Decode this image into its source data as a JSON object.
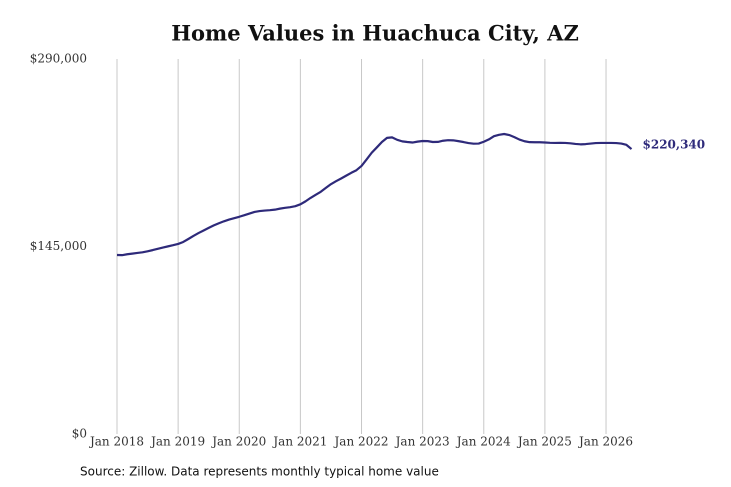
{
  "chart_data": {
    "type": "line",
    "title": "Home Values in Huachuca City, AZ",
    "source": "Source: Zillow. Data represents monthly typical home value",
    "x": [
      "2018-01",
      "2018-02",
      "2018-03",
      "2018-04",
      "2018-05",
      "2018-06",
      "2018-07",
      "2018-08",
      "2018-09",
      "2018-10",
      "2018-11",
      "2018-12",
      "2019-01",
      "2019-02",
      "2019-03",
      "2019-04",
      "2019-05",
      "2019-06",
      "2019-07",
      "2019-08",
      "2019-09",
      "2019-10",
      "2019-11",
      "2019-12",
      "2020-01",
      "2020-02",
      "2020-03",
      "2020-04",
      "2020-05",
      "2020-06",
      "2020-07",
      "2020-08",
      "2020-09",
      "2020-10",
      "2020-11",
      "2020-12",
      "2021-01",
      "2021-02",
      "2021-03",
      "2021-04",
      "2021-05",
      "2021-06",
      "2021-07",
      "2021-08",
      "2021-09",
      "2021-10",
      "2021-11",
      "2021-12",
      "2022-01",
      "2022-02",
      "2022-03",
      "2022-04",
      "2022-05",
      "2022-06",
      "2022-07",
      "2022-08",
      "2022-09",
      "2022-10",
      "2022-11",
      "2022-12",
      "2023-01",
      "2023-02",
      "2023-03",
      "2023-04",
      "2023-05",
      "2023-06",
      "2023-07",
      "2023-08",
      "2023-09",
      "2023-10",
      "2023-11",
      "2023-12",
      "2024-01",
      "2024-02",
      "2024-03",
      "2024-04",
      "2024-05",
      "2024-06",
      "2024-07",
      "2024-08",
      "2024-09",
      "2024-10",
      "2024-11",
      "2024-12",
      "2025-01",
      "2025-02",
      "2025-03",
      "2025-04",
      "2025-05",
      "2025-06",
      "2025-07",
      "2025-08",
      "2025-09",
      "2025-10",
      "2025-11",
      "2025-12",
      "2026-01",
      "2026-02",
      "2026-03",
      "2026-04",
      "2026-05",
      "2026-06"
    ],
    "series": [
      {
        "name": "Typical home value",
        "color": "#2e2a7a",
        "values": [
          138400,
          138300,
          139000,
          139500,
          140000,
          140500,
          141300,
          142200,
          143200,
          144200,
          145100,
          146000,
          147000,
          148500,
          150800,
          153200,
          155400,
          157400,
          159400,
          161300,
          163000,
          164500,
          165800,
          166900,
          168000,
          169200,
          170500,
          171700,
          172400,
          172800,
          173100,
          173500,
          174300,
          174900,
          175400,
          176200,
          177600,
          179900,
          182600,
          185000,
          187300,
          190300,
          193200,
          195500,
          197600,
          199800,
          202000,
          204000,
          207300,
          212300,
          217500,
          221600,
          225800,
          229000,
          229400,
          227500,
          226300,
          225800,
          225400,
          226100,
          226600,
          226500,
          225800,
          225900,
          226800,
          227200,
          227100,
          226500,
          225800,
          225000,
          224500,
          224600,
          226000,
          227800,
          230300,
          231400,
          232000,
          231200,
          229600,
          227700,
          226400,
          225700,
          225600,
          225600,
          225400,
          225200,
          225100,
          225200,
          225100,
          224800,
          224300,
          224000,
          224200,
          224600,
          225000,
          225100,
          225100,
          225100,
          225000,
          224600,
          223600,
          220340
        ],
        "value_labels": [
          null,
          null,
          null,
          null,
          null,
          null,
          null,
          null,
          null,
          null,
          null,
          null,
          null,
          null,
          null,
          null,
          null,
          null,
          null,
          null,
          null,
          null,
          null,
          null,
          null,
          null,
          null,
          null,
          null,
          null,
          null,
          null,
          null,
          null,
          null,
          null,
          null,
          null,
          null,
          null,
          null,
          null,
          null,
          null,
          null,
          null,
          null,
          null,
          null,
          null,
          null,
          null,
          null,
          null,
          null,
          null,
          null,
          null,
          null,
          null,
          null,
          null,
          null,
          null,
          null,
          null,
          null,
          null,
          null,
          null,
          null,
          null,
          null,
          null,
          null,
          null,
          null,
          null,
          null,
          null,
          null,
          null,
          null,
          null,
          null,
          null,
          null,
          null,
          null,
          null,
          null,
          null,
          null,
          null,
          null,
          null,
          null,
          null,
          null,
          null,
          null,
          "$220,340"
        ]
      }
    ],
    "xlim": [
      "2018-01",
      "2026-06"
    ],
    "xticks": [
      {
        "value": "2018-01",
        "label": "Jan 2018"
      },
      {
        "value": "2019-01",
        "label": "Jan 2019"
      },
      {
        "value": "2020-01",
        "label": "Jan 2020"
      },
      {
        "value": "2021-01",
        "label": "Jan 2021"
      },
      {
        "value": "2022-01",
        "label": "Jan 2022"
      },
      {
        "value": "2023-01",
        "label": "Jan 2023"
      },
      {
        "value": "2024-01",
        "label": "Jan 2024"
      },
      {
        "value": "2025-01",
        "label": "Jan 2025"
      },
      {
        "value": "2026-01",
        "label": "Jan 2026"
      }
    ],
    "ylim": [
      0,
      290000
    ],
    "yticks": [
      {
        "value": 0,
        "label": "$0"
      },
      {
        "value": 145000,
        "label": "$145,000"
      },
      {
        "value": 290000,
        "label": "$290,000"
      }
    ],
    "grid": "x"
  }
}
